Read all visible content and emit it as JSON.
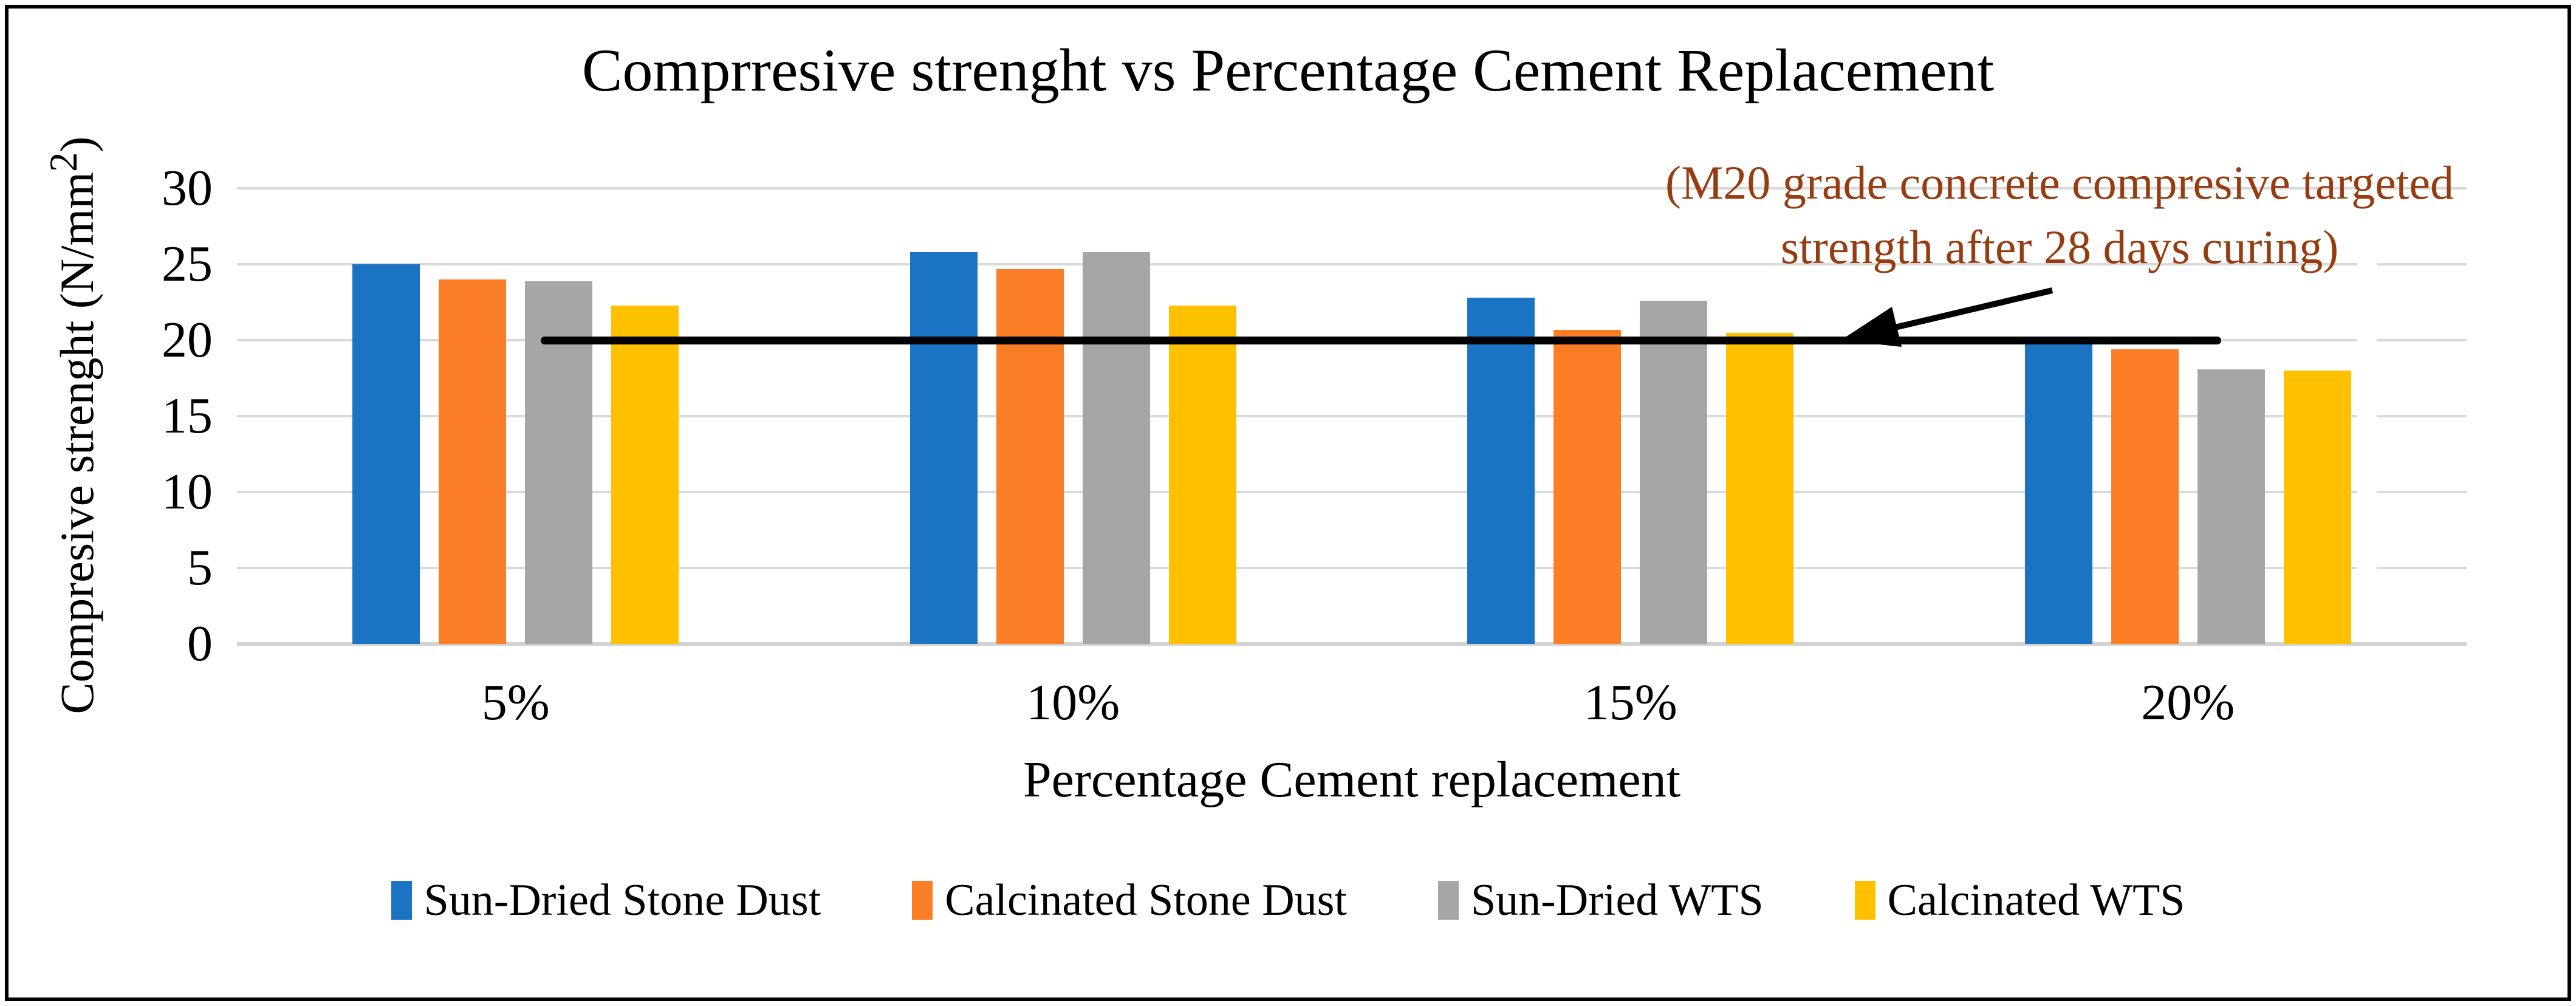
{
  "chart_data": {
    "type": "bar",
    "title": "Comprresive strenght vs Percentage Cement Replacement",
    "xlabel": "Percentage Cement replacement",
    "ylabel": "Compresive strenght (N/mm2)",
    "ylabel_main": "Compresive strenght (N/mm",
    "ylabel_sup": "2",
    "ylabel_close": ")",
    "categories": [
      "5%",
      "10%",
      "15%",
      "20%"
    ],
    "series": [
      {
        "name": "Sun-Dried Stone Dust",
        "color": "#1b73c4",
        "values": [
          25.0,
          25.8,
          22.8,
          19.8
        ]
      },
      {
        "name": "Calcinated Stone Dust",
        "color": "#fb7e26",
        "values": [
          24.0,
          24.7,
          20.7,
          19.4
        ]
      },
      {
        "name": "Sun-Dried WTS",
        "color": "#a6a6a6",
        "values": [
          23.9,
          25.8,
          22.6,
          18.1
        ]
      },
      {
        "name": "Calcinated WTS",
        "color": "#ffc000",
        "values": [
          22.3,
          22.3,
          20.5,
          18.0
        ]
      }
    ],
    "ylim": [
      0,
      30
    ],
    "yticks": [
      0,
      5,
      10,
      15,
      20,
      25,
      30
    ],
    "grid": true,
    "grid_color": "#d9d9d9",
    "legend_position": "bottom",
    "target_line": {
      "value": 20,
      "color": "#000000",
      "annotation_line1": "(M20 grade concrete compresive targeted",
      "annotation_line2": "strength after 28 days curing)",
      "annotation_color": "#963c10"
    }
  }
}
